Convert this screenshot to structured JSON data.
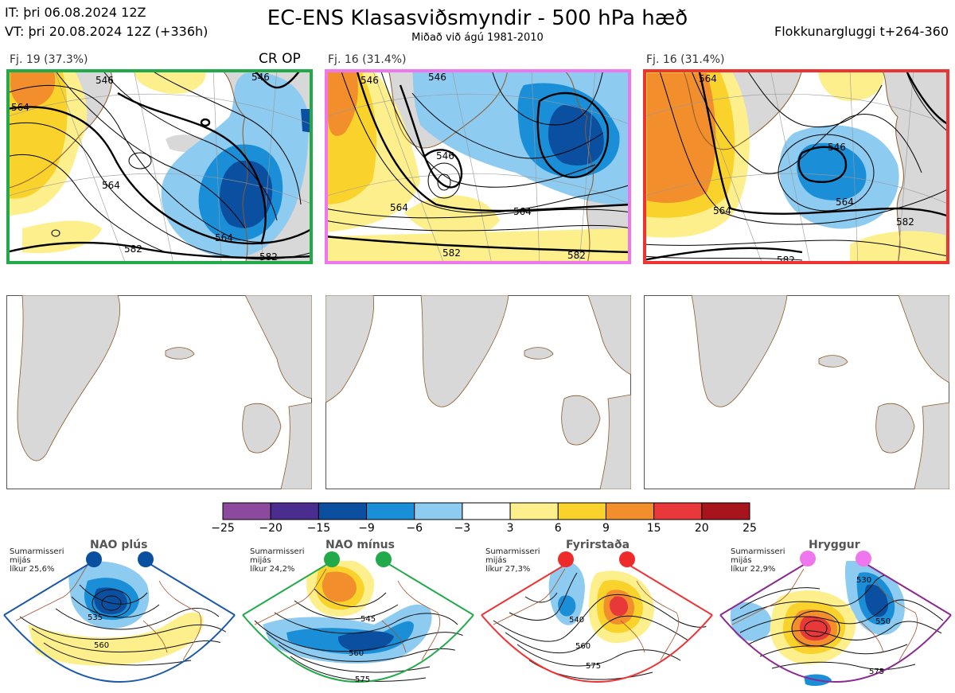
{
  "header": {
    "init_time": "IT: þri 06.08.2024 12Z",
    "valid_time": "VT: þri 20.08.2024 12Z  (+336h)",
    "title": "EC-ENS Klasasviðsmyndir - 500 hPa hæð",
    "subtitle": "Miðað við ágú 1981-2010",
    "cluster_window": "Flokkunargluggi t+264-360"
  },
  "clusters": [
    {
      "label": "Fj. 19 (37.3%)",
      "marker": "CR OP",
      "border_color": "#22aa4a",
      "contour_labels": [
        "564",
        "564",
        "582",
        "564",
        "546",
        "546",
        "582"
      ]
    },
    {
      "label": "Fj. 16 (31.4%)",
      "marker": "",
      "border_color": "#ee77ee",
      "contour_labels": [
        "546",
        "564",
        "564",
        "582",
        "582",
        "546",
        "546"
      ]
    },
    {
      "label": "Fj. 16 (31.4%)",
      "marker": "",
      "border_color": "#ee3333",
      "contour_labels": [
        "564",
        "564",
        "546",
        "582",
        "582",
        "564"
      ]
    }
  ],
  "colorbar": {
    "ticks": [
      "−25",
      "−20",
      "−15",
      "−9",
      "−6",
      "−3",
      "3",
      "6",
      "9",
      "15",
      "20",
      "25"
    ],
    "colors": [
      "#8b4a9e",
      "#4a2d8f",
      "#0b4fa0",
      "#1a8fd8",
      "#8ecbf0",
      "#ffffff",
      "#fdf08c",
      "#f9d22c",
      "#f28e2b",
      "#e8383a",
      "#a8141b"
    ]
  },
  "regimes": [
    {
      "name": "NAO plús",
      "stat_lines": [
        "Sumarmisseri",
        "mijás",
        "líkur 25,6%"
      ],
      "dot_color": "#0b4fa0",
      "frame_color": "#1b58a8",
      "contour_labels": [
        "535",
        "560"
      ]
    },
    {
      "name": "NAO mínus",
      "stat_lines": [
        "Sumarmisseri",
        "mijás",
        "líkur 24,2%"
      ],
      "dot_color": "#22aa4a",
      "frame_color": "#22aa4a",
      "contour_labels": [
        "545",
        "560",
        "575"
      ]
    },
    {
      "name": "Fyrirstaða",
      "stat_lines": [
        "Sumarmisseri",
        "mijás",
        "líkur 27,3%"
      ],
      "dot_color": "#ee2a2a",
      "frame_color": "#ee3333",
      "contour_labels": [
        "540",
        "560",
        "575"
      ]
    },
    {
      "name": "Hryggur",
      "stat_lines": [
        "Sumarmisseri",
        "mijás",
        "líkur 22,9%"
      ],
      "dot_color": "#ee77ee",
      "frame_color": "#8a2a8e",
      "contour_labels": [
        "530",
        "550",
        "575"
      ]
    }
  ]
}
